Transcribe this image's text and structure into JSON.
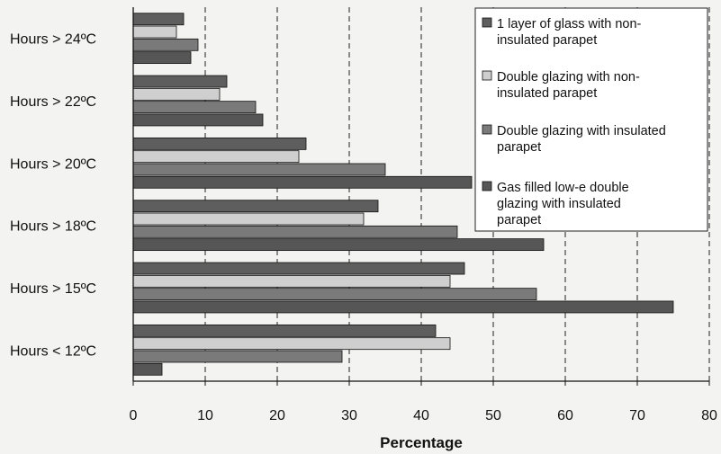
{
  "chart_data": {
    "type": "bar",
    "orientation": "horizontal",
    "categories": [
      "Hours > 24ºC",
      "Hours > 22ºC",
      "Hours > 20ºC",
      "Hours > 18ºC",
      "Hours > 15ºC",
      "Hours < 12ºC"
    ],
    "series": [
      {
        "name": "1 layer of glass with non-insulated parapet",
        "values": [
          7,
          13,
          24,
          34,
          46,
          42
        ],
        "color": "#5e5e5e"
      },
      {
        "name": "Double glazing with non-insulated parapet",
        "values": [
          6,
          12,
          23,
          32,
          44,
          44
        ],
        "color": "#cfcfcf"
      },
      {
        "name": "Double glazing with insulated parapet",
        "values": [
          9,
          17,
          35,
          45,
          56,
          29
        ],
        "color": "#7a7a7a"
      },
      {
        "name": "Gas filled low-e double glazing with insulated parapet",
        "values": [
          8,
          18,
          47,
          57,
          75,
          4
        ],
        "color": "#565656"
      }
    ],
    "legend_lines": [
      [
        "1 layer of glass with non-",
        "insulated parapet"
      ],
      [
        "Double glazing with non-",
        "insulated parapet"
      ],
      [
        "Double glazing with insulated",
        "parapet"
      ],
      [
        "Gas filled low-e double",
        "glazing with insulated",
        "parapet"
      ]
    ],
    "xlabel": "Percentage",
    "ylabel": "",
    "title": "",
    "xlim": [
      0,
      80
    ],
    "xticks": [
      0,
      10,
      20,
      30,
      40,
      50,
      60,
      70,
      80
    ],
    "grid": "vertical dashed",
    "legend_position": "top-right"
  }
}
